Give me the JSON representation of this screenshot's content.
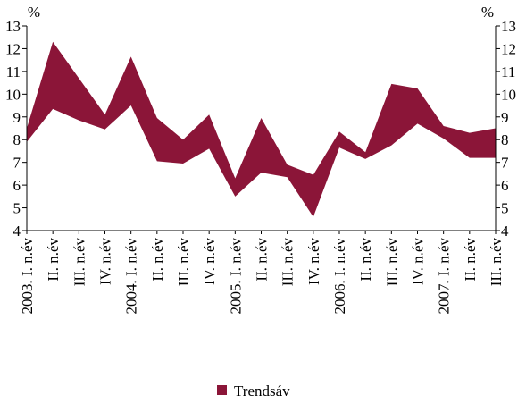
{
  "chart_data": {
    "type": "band",
    "ylabel": "%",
    "y2label": "%",
    "categories": [
      "2003. I. n.év",
      "II. n.év",
      "III. n.év",
      "IV. n.év",
      "2004. I. n.év",
      "II. n.év",
      "III. n.év",
      "IV. n.év",
      "2005. I. n.év",
      "II. n.év",
      "III. n.év",
      "IV. n.év",
      "2006. I. n.év",
      "II. n.év",
      "III. n.év",
      "IV. n.év",
      "2007. I. n.év",
      "II. n.év",
      "III. n.év"
    ],
    "series": [
      {
        "name": "Trendsáv",
        "color": "#8b1538",
        "high": [
          8.5,
          12.3,
          10.7,
          9.1,
          11.65,
          8.95,
          8.0,
          9.1,
          6.3,
          8.95,
          6.9,
          6.45,
          8.35,
          7.45,
          10.45,
          10.25,
          8.6,
          8.3,
          8.5
        ],
        "low": [
          7.9,
          9.35,
          8.85,
          8.45,
          9.5,
          7.05,
          6.95,
          7.6,
          5.5,
          6.55,
          6.35,
          4.6,
          7.65,
          7.15,
          7.75,
          8.7,
          8.05,
          7.2,
          7.2
        ]
      }
    ],
    "ylim": [
      4,
      13
    ],
    "yticks": [
      4,
      5,
      6,
      7,
      8,
      9,
      10,
      11,
      12,
      13
    ],
    "y2lim": [
      4,
      13
    ],
    "y2ticks": [
      4,
      5,
      6,
      7,
      8,
      9,
      10,
      11,
      12,
      13
    ],
    "legend": "bottom"
  }
}
